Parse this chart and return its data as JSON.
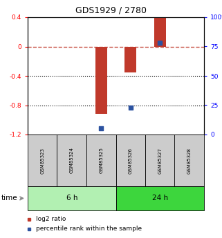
{
  "title": "GDS1929 / 2780",
  "samples": [
    "GSM85323",
    "GSM85324",
    "GSM85325",
    "GSM85326",
    "GSM85327",
    "GSM85328"
  ],
  "log2_ratio": [
    null,
    null,
    -0.92,
    -0.35,
    0.4,
    null
  ],
  "percentile_rank": [
    null,
    null,
    5.0,
    23.0,
    78.0,
    null
  ],
  "ylim_left": [
    -1.2,
    0.4
  ],
  "ylim_right": [
    0,
    100
  ],
  "yticks_left": [
    -1.2,
    -0.8,
    -0.4,
    0.0,
    0.4
  ],
  "ytick_labels_left": [
    "-1.2",
    "-0.8",
    "-0.4",
    "0",
    "0.4"
  ],
  "yticks_right": [
    0,
    25,
    50,
    75,
    100
  ],
  "ytick_labels_right": [
    "0",
    "25",
    "50",
    "75",
    "100%"
  ],
  "hline_y": 0.0,
  "dotted_lines": [
    -0.4,
    -0.8
  ],
  "bar_color": "#c0392b",
  "scatter_color": "#2c52a0",
  "bar_width": 0.4,
  "group_labels": [
    "6 h",
    "24 h"
  ],
  "group_color_light": "#b2f0b2",
  "group_color_dark": "#3dd63d",
  "time_label": "time",
  "legend_log2": "log2 ratio",
  "legend_pct": "percentile rank within the sample",
  "background_color": "#ffffff"
}
